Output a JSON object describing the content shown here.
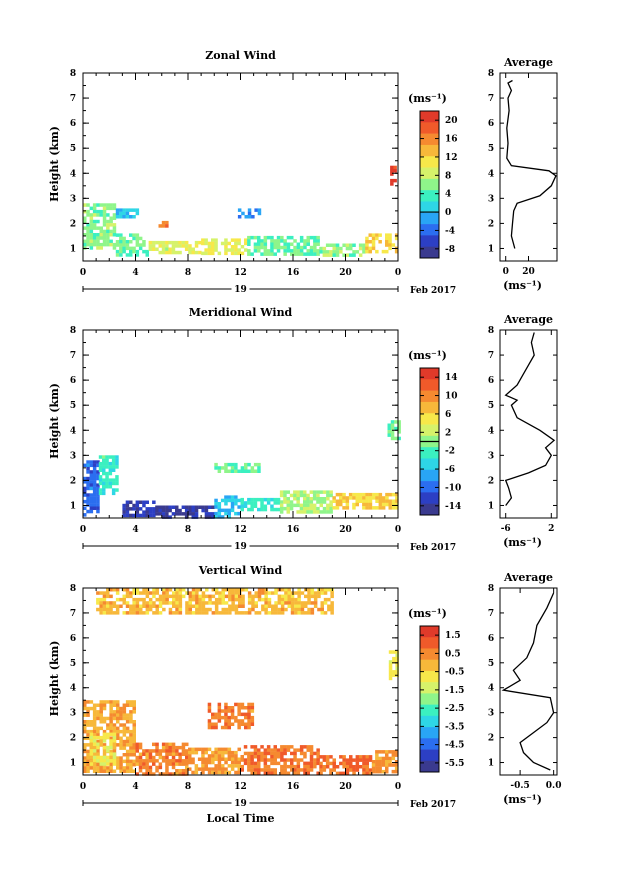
{
  "chart_data": [
    {
      "type": "heatmap",
      "title": "Zonal Wind",
      "ylabel": "Height (km)",
      "yticks": [
        "1",
        "2",
        "3",
        "4",
        "5",
        "6",
        "7",
        "8"
      ],
      "ylim": [
        0.5,
        8
      ],
      "xticks": [
        "0",
        "4",
        "8",
        "12",
        "16",
        "20",
        "0"
      ],
      "xlim": [
        0,
        24
      ],
      "day_label": "19",
      "date_label": "Feb 2017",
      "colorbar": {
        "unit": "(ms⁻¹)",
        "ticks": [
          "20",
          "16",
          "12",
          "8",
          "4",
          "0",
          "-4",
          "-8"
        ],
        "range": [
          -10,
          22
        ]
      },
      "blobs": [
        {
          "t0": 0.0,
          "t1": 2.5,
          "h0": 1.0,
          "h1": 2.8,
          "value": 6
        },
        {
          "t0": 2.5,
          "t1": 5.0,
          "h0": 0.8,
          "h1": 1.6,
          "value": 5
        },
        {
          "t0": 5.0,
          "t1": 9.0,
          "h0": 0.8,
          "h1": 1.3,
          "value": 9
        },
        {
          "t0": 9.0,
          "t1": 12.5,
          "h0": 0.8,
          "h1": 1.4,
          "value": 10
        },
        {
          "t0": 12.5,
          "t1": 18.0,
          "h0": 0.8,
          "h1": 1.5,
          "value": 5
        },
        {
          "t0": 18.0,
          "t1": 21.5,
          "h0": 0.8,
          "h1": 1.2,
          "value": 6
        },
        {
          "t0": 21.5,
          "t1": 24.0,
          "h0": 0.9,
          "h1": 1.6,
          "value": 12
        },
        {
          "t0": 2.5,
          "t1": 4.2,
          "h0": 2.3,
          "h1": 2.6,
          "value": 0
        },
        {
          "t0": 5.5,
          "t1": 6.5,
          "h0": 1.9,
          "h1": 2.1,
          "value": 16
        },
        {
          "t0": 11.8,
          "t1": 13.5,
          "h0": 2.3,
          "h1": 2.6,
          "value": -2
        },
        {
          "t0": 23.4,
          "t1": 23.8,
          "h0": 3.6,
          "h1": 4.3,
          "value": 21
        }
      ],
      "profile": {
        "title": "Average",
        "xticks": [
          "0",
          "20"
        ],
        "xlim": [
          -5,
          45
        ],
        "xlabel": "(ms⁻¹)",
        "points": [
          [
            8,
            1.0
          ],
          [
            5,
            1.5
          ],
          [
            6,
            2.0
          ],
          [
            7,
            2.5
          ],
          [
            10,
            2.8
          ],
          [
            30,
            3.1
          ],
          [
            40,
            3.5
          ],
          [
            44,
            3.9
          ],
          [
            38,
            4.1
          ],
          [
            5,
            4.3
          ],
          [
            1,
            4.6
          ],
          [
            2,
            5.2
          ],
          [
            1,
            5.8
          ],
          [
            3,
            6.5
          ],
          [
            2,
            7.0
          ],
          [
            5,
            7.3
          ],
          [
            2,
            7.6
          ],
          [
            6,
            7.7
          ]
        ]
      }
    },
    {
      "type": "heatmap",
      "title": "Meridional Wind",
      "ylabel": "Height (km)",
      "yticks": [
        "1",
        "2",
        "3",
        "4",
        "5",
        "6",
        "7",
        "8"
      ],
      "ylim": [
        0.5,
        8
      ],
      "xticks": [
        "0",
        "4",
        "8",
        "12",
        "16",
        "20",
        "0"
      ],
      "xlim": [
        0,
        24
      ],
      "day_label": "19",
      "date_label": "Feb 2017",
      "colorbar": {
        "unit": "(ms⁻¹)",
        "ticks": [
          "14",
          "10",
          "6",
          "2",
          "-2",
          "-6",
          "-10",
          "-14"
        ],
        "range": [
          -16,
          16
        ]
      },
      "blobs": [
        {
          "t0": 0.0,
          "t1": 1.2,
          "h0": 0.6,
          "h1": 2.8,
          "value": -10
        },
        {
          "t0": 1.2,
          "t1": 2.6,
          "h0": 1.5,
          "h1": 3.0,
          "value": -3
        },
        {
          "t0": 3.0,
          "t1": 5.5,
          "h0": 0.6,
          "h1": 1.2,
          "value": -13
        },
        {
          "t0": 5.5,
          "t1": 10.0,
          "h0": 0.6,
          "h1": 1.0,
          "value": -14
        },
        {
          "t0": 10.0,
          "t1": 12.0,
          "h0": 0.6,
          "h1": 1.4,
          "value": -6
        },
        {
          "t0": 12.0,
          "t1": 15.0,
          "h0": 0.8,
          "h1": 1.3,
          "value": -3
        },
        {
          "t0": 15.0,
          "t1": 19.0,
          "h0": 0.8,
          "h1": 1.6,
          "value": 1
        },
        {
          "t0": 19.0,
          "t1": 24.0,
          "h0": 0.9,
          "h1": 1.5,
          "value": 6
        },
        {
          "t0": 10.0,
          "t1": 13.5,
          "h0": 2.4,
          "h1": 2.7,
          "value": -1
        },
        {
          "t0": 23.2,
          "t1": 24.0,
          "h0": 3.7,
          "h1": 4.4,
          "value": -1
        }
      ],
      "profile": {
        "title": "Average",
        "xticks": [
          "-6",
          "2"
        ],
        "xlim": [
          -7,
          3
        ],
        "xlabel": "(ms⁻¹)",
        "points": [
          [
            -6,
            1.0
          ],
          [
            -5,
            1.3
          ],
          [
            -5.5,
            1.7
          ],
          [
            -6,
            2.0
          ],
          [
            -2,
            2.3
          ],
          [
            1,
            2.6
          ],
          [
            2,
            3.0
          ],
          [
            1,
            3.3
          ],
          [
            2.5,
            3.6
          ],
          [
            0,
            4.0
          ],
          [
            -4,
            4.5
          ],
          [
            -5,
            5.0
          ],
          [
            -4,
            5.2
          ],
          [
            -6,
            5.4
          ],
          [
            -4,
            5.8
          ],
          [
            -3,
            6.2
          ],
          [
            -2,
            6.6
          ],
          [
            -1,
            7.0
          ],
          [
            -1.5,
            7.5
          ],
          [
            -1,
            7.9
          ]
        ]
      }
    },
    {
      "type": "heatmap",
      "title": "Vertical Wind",
      "xlabel": "Local Time",
      "ylabel": "Height (km)",
      "yticks": [
        "1",
        "2",
        "3",
        "4",
        "5",
        "6",
        "7",
        "8"
      ],
      "ylim": [
        0.5,
        8
      ],
      "xticks": [
        "0",
        "4",
        "8",
        "12",
        "16",
        "20",
        "0"
      ],
      "xlim": [
        0,
        24
      ],
      "day_label": "19",
      "date_label": "Feb 2017",
      "colorbar": {
        "unit": "(ms⁻¹)",
        "ticks": [
          "1.5",
          "0.5",
          "-0.5",
          "-1.5",
          "-2.5",
          "-3.5",
          "-4.5",
          "-5.5"
        ],
        "range": [
          -6,
          2
        ]
      },
      "blobs": [
        {
          "t0": 0.0,
          "t1": 4.0,
          "h0": 0.6,
          "h1": 3.5,
          "value": 0.1
        },
        {
          "t0": 0.5,
          "t1": 2.5,
          "h0": 1.0,
          "h1": 2.2,
          "value": -0.8
        },
        {
          "t0": 4.0,
          "t1": 8.0,
          "h0": 0.6,
          "h1": 1.8,
          "value": 0.5
        },
        {
          "t0": 8.0,
          "t1": 12.0,
          "h0": 0.6,
          "h1": 1.6,
          "value": 0.2
        },
        {
          "t0": 9.5,
          "t1": 13.0,
          "h0": 2.4,
          "h1": 3.4,
          "value": 0.6
        },
        {
          "t0": 12.0,
          "t1": 18.0,
          "h0": 0.6,
          "h1": 1.7,
          "value": 0.7
        },
        {
          "t0": 18.0,
          "t1": 22.0,
          "h0": 0.6,
          "h1": 1.3,
          "value": 0.9
        },
        {
          "t0": 22.0,
          "t1": 24.0,
          "h0": 0.6,
          "h1": 1.5,
          "value": 0.3
        },
        {
          "t0": 23.3,
          "t1": 24.0,
          "h0": 4.4,
          "h1": 5.5,
          "value": -1.0
        },
        {
          "t0": 1.0,
          "t1": 19.0,
          "h0": 7.0,
          "h1": 8.0,
          "value": -0.2
        }
      ],
      "profile": {
        "title": "Average",
        "xticks": [
          "-0.5",
          "0.0"
        ],
        "xlim": [
          -0.8,
          0.05
        ],
        "xlabel": "(ms⁻¹)",
        "points": [
          [
            -0.05,
            0.7
          ],
          [
            -0.3,
            1.0
          ],
          [
            -0.45,
            1.4
          ],
          [
            -0.5,
            1.8
          ],
          [
            -0.3,
            2.2
          ],
          [
            -0.1,
            2.6
          ],
          [
            0.0,
            3.0
          ],
          [
            -0.05,
            3.6
          ],
          [
            -0.75,
            3.9
          ],
          [
            -0.5,
            4.3
          ],
          [
            -0.6,
            4.7
          ],
          [
            -0.4,
            5.2
          ],
          [
            -0.3,
            5.8
          ],
          [
            -0.25,
            6.5
          ],
          [
            -0.1,
            7.2
          ],
          [
            0.0,
            7.8
          ]
        ]
      }
    }
  ]
}
